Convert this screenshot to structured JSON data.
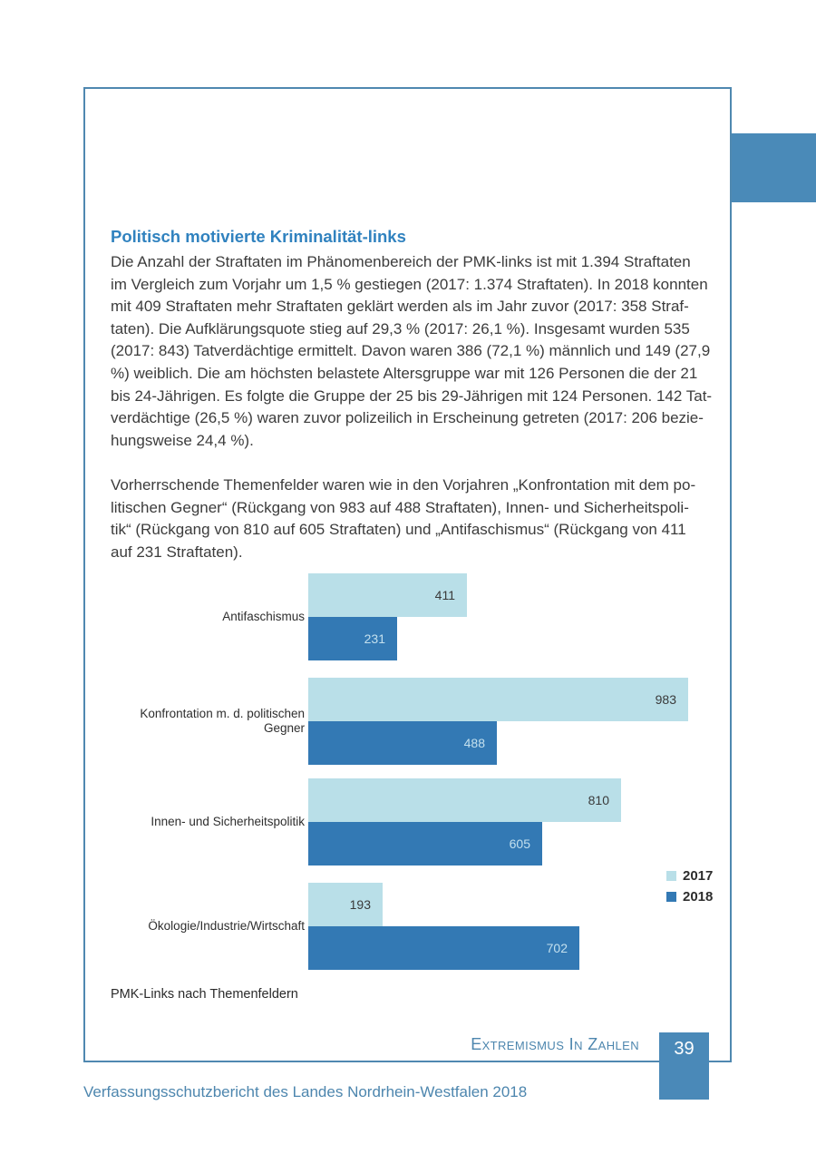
{
  "page": {
    "heading": "Politisch motivierte Kriminalität-links",
    "paragraph1": "Die Anzahl der Straftaten im Phänomenbereich der PMK-links ist mit 1.394 Straftaten\nim Vergleich zum Vorjahr um 1,5 % gestiegen (2017: 1.374 Straftaten). In 2018 konnten\nmit 409 Straftaten mehr Straftaten geklärt werden als im Jahr zuvor (2017: 358 Straf-\ntaten). Die Aufklärungsquote stieg auf 29,3 % (2017: 26,1 %). Insgesamt wurden 535\n(2017: 843) Tatverdächtige ermittelt. Davon waren 386 (72,1 %) männlich und 149 (27,9\n%) weiblich. Die am höchsten belastete Altersgruppe war mit 126 Personen die der 21\nbis 24-Jährigen. Es folgte die Gruppe der 25 bis 29-Jährigen mit 124 Personen. 142 Tat-\nverdächtige (26,5 %) waren zuvor polizeilich in Erscheinung getreten (2017: 206 bezie-\nhungsweise 24,4 %).",
    "paragraph2": "Vorherrschende Themenfelder waren wie in den Vorjahren „Konfrontation mit dem po-\nlitischen Gegner“ (Rückgang von 983 auf 488 Straftaten), Innen- und Sicherheitspoli-\ntik“ (Rückgang von 810 auf 605 Straftaten) und „Antifaschismus“ (Rückgang von 411\nauf 231 Straftaten).",
    "caption": "PMK-Links nach Themenfeldern",
    "footer_section": "Extremismus In Zahlen",
    "page_number": "39",
    "bottom_note": "Verfassungsschutzbericht des Landes Nordrhein-Westfalen 2018"
  },
  "colors": {
    "border_blue": "#4f88b0",
    "accent_blue": "#4a8ab8",
    "heading_blue": "#3082bf",
    "footer_blue": "#4d86ae",
    "bar_2017": "#b9dfe8",
    "bar_2018": "#3379b4"
  },
  "chart_data": {
    "type": "bar",
    "orientation": "horizontal",
    "title": "PMK-Links nach Themenfeldern",
    "categories": [
      "Antifaschismus",
      "Konfrontation m. d. politischen Gegner",
      "Innen- und Sicherheitspolitik",
      "Ökologie/Industrie/Wirtschaft"
    ],
    "series": [
      {
        "name": "2017",
        "color": "#b9dfe8",
        "values": [
          411,
          983,
          810,
          193
        ]
      },
      {
        "name": "2018",
        "color": "#3379b4",
        "values": [
          231,
          488,
          605,
          702
        ]
      }
    ],
    "xlim": [
      0,
      983
    ],
    "legend_position": "right",
    "grid": false,
    "value_labels": "inside-end"
  }
}
